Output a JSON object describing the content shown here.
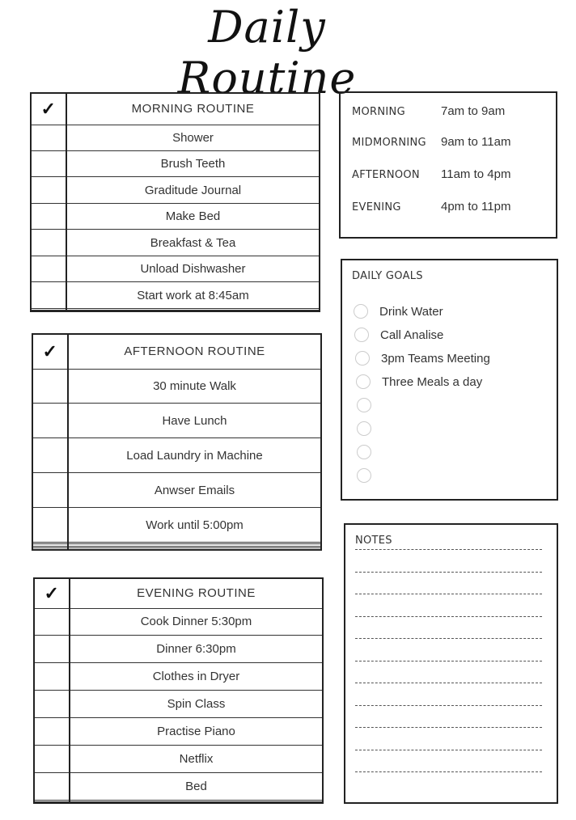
{
  "title": "Daily Routine",
  "check_symbol": "✓",
  "morning": {
    "header": "MORNING ROUTINE",
    "items": [
      "Shower",
      "Brush Teeth",
      "Graditude Journal",
      "Make Bed",
      "Breakfast & Tea",
      "Unload Dishwasher",
      "Start work at 8:45am",
      "",
      ""
    ]
  },
  "afternoon": {
    "header": "AFTERNOON ROUTINE",
    "items": [
      "30 minute Walk",
      "Have Lunch",
      "Load Laundry in Machine",
      "Anwser Emails",
      "Work until 5:00pm",
      "",
      "",
      "",
      ""
    ]
  },
  "evening": {
    "header": "EVENING ROUTINE",
    "items": [
      "Cook Dinner 5:30pm",
      "Dinner 6:30pm",
      "Clothes in Dryer",
      "Spin Class",
      "Practise Piano",
      "Netflix",
      "Bed",
      "",
      ""
    ]
  },
  "times": [
    {
      "label": "MORNING",
      "value": "7am to 9am"
    },
    {
      "label": "MIDMORNING",
      "value": "9am to 11am"
    },
    {
      "label": "AFTERNOON",
      "value": "11am  to 4pm"
    },
    {
      "label": "EVENING",
      "value": "4pm to 11pm"
    }
  ],
  "goals": {
    "header": "DAILY GOALS",
    "items": [
      "Drink Water",
      "Call Analise",
      "3pm Teams Meeting",
      "Three Meals a day",
      "",
      "",
      "",
      ""
    ]
  },
  "notes": {
    "header": "NOTES"
  }
}
